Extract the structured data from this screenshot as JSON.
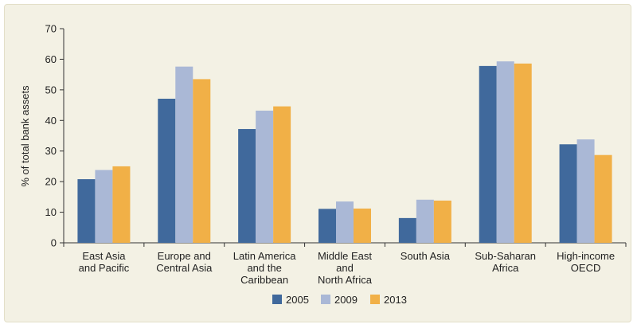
{
  "chart_data": {
    "type": "bar",
    "categories": [
      [
        "East Asia",
        "and Pacific"
      ],
      [
        "Europe and",
        "Central Asia"
      ],
      [
        "Latin America",
        "and the",
        "Caribbean"
      ],
      [
        "Middle East",
        "and",
        "North Africa"
      ],
      [
        "South Asia"
      ],
      [
        "Sub-Saharan",
        "Africa"
      ],
      [
        "High-income",
        "OECD"
      ]
    ],
    "series": [
      {
        "name": "2005",
        "color": "#40699c",
        "values": [
          20.8,
          47.1,
          37.2,
          11.1,
          8.1,
          57.8,
          32.2
        ]
      },
      {
        "name": "2009",
        "color": "#aab8d6",
        "values": [
          23.8,
          57.6,
          43.2,
          13.5,
          14.1,
          59.3,
          33.8
        ]
      },
      {
        "name": "2013",
        "color": "#f1b047",
        "values": [
          25.0,
          53.5,
          44.6,
          11.2,
          13.8,
          58.6,
          28.7
        ]
      }
    ],
    "ylabel": "% of total bank assets",
    "ylim": [
      0,
      70
    ],
    "yticks": [
      0,
      10,
      20,
      30,
      40,
      50,
      60,
      70
    ],
    "legend_position": "bottom-center",
    "grid": false
  }
}
